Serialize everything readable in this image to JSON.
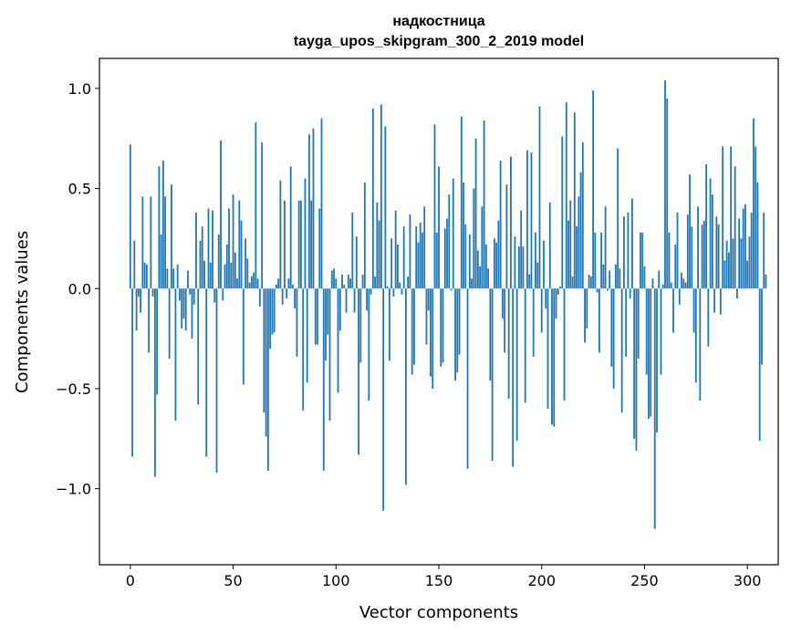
{
  "chart_data": {
    "type": "bar",
    "title": "надкостница",
    "subtitle": "tayga_upos_skipgram_300_2_2019 model",
    "xlabel": "Vector components",
    "ylabel": "Components values",
    "xlim": [
      -15,
      315
    ],
    "ylim": [
      -1.38,
      1.15
    ],
    "xticks": [
      0,
      50,
      100,
      150,
      200,
      250,
      300
    ],
    "yticks": [
      -1.0,
      -0.5,
      0.0,
      0.5,
      1.0
    ],
    "ytick_labels": [
      "−1.0",
      "−0.5",
      "0.0",
      "0.5",
      "1.0"
    ],
    "bar_color": "#1f77b4",
    "values": [
      0.72,
      -0.84,
      0.24,
      -0.21,
      -0.04,
      -0.12,
      0.46,
      0.13,
      0.12,
      -0.32,
      0.46,
      -0.04,
      -0.94,
      -0.53,
      0.61,
      0.27,
      0.64,
      0.46,
      0.1,
      -0.35,
      0.52,
      0.1,
      -0.66,
      0.12,
      -0.06,
      -0.2,
      -0.15,
      -0.21,
      0.09,
      -0.03,
      -0.25,
      -0.08,
      0.38,
      -0.58,
      0.24,
      0.31,
      0.14,
      -0.84,
      0.4,
      0.13,
      0.39,
      -0.07,
      -0.92,
      0.27,
      0.74,
      -0.06,
      0.12,
      0.22,
      0.4,
      0.13,
      0.47,
      0.18,
      0.05,
      0.44,
      0.34,
      -0.48,
      0.25,
      0.15,
      0.03,
      0.06,
      0.08,
      0.83,
      0.05,
      -0.09,
      0.73,
      -0.62,
      -0.74,
      -0.91,
      -0.3,
      -0.23,
      -0.22,
      0.02,
      0.05,
      0.54,
      -0.08,
      0.44,
      -0.05,
      0.05,
      0.61,
      0.02,
      -0.1,
      -0.34,
      0.44,
      0.44,
      -0.61,
      0.55,
      -0.47,
      0.77,
      0.44,
      0.8,
      -0.28,
      -0.28,
      0.4,
      0.85,
      -0.91,
      -0.36,
      -0.23,
      -0.66,
      0.09,
      0.1,
      0.05,
      -0.52,
      -0.21,
      0.07,
      0.02,
      -0.12,
      0.07,
      0.05,
      0.38,
      -0.12,
      0.26,
      -0.83,
      -0.37,
      0.07,
      0.53,
      -0.11,
      -0.56,
      -0.03,
      0.9,
      0.06,
      0.43,
      0.34,
      0.92,
      -1.11,
      0.81,
      0.01,
      -0.36,
      0.25,
      -0.04,
      0.39,
      0.22,
      0.03,
      -0.03,
      0.31,
      -0.98,
      0.06,
      0.37,
      -0.43,
      -0.38,
      0.31,
      0.23,
      0.33,
      0.28,
      0.41,
      -0.28,
      -0.11,
      -0.44,
      -0.5,
      0.82,
      0.28,
      0.61,
      -0.39,
      -0.37,
      0.3,
      0.35,
      0.47,
      -0.01,
      0.55,
      -0.46,
      -0.42,
      -0.33,
      0.86,
      0.53,
      0.32,
      -0.9,
      0.27,
      0.05,
      0.5,
      0.75,
      0.19,
      0.11,
      0.41,
      0.84,
      0.22,
      0.1,
      -0.46,
      -0.86,
      0.25,
      0.23,
      0.34,
      0.64,
      -0.15,
      -0.32,
      0.52,
      -0.55,
      0.66,
      -0.89,
      0.26,
      -0.76,
      0.21,
      0.39,
      0.21,
      -0.57,
      0.69,
      0.07,
      0.68,
      -0.34,
      0.28,
      0.13,
      0.91,
      -0.22,
      0.24,
      -0.1,
      -0.6,
      0.43,
      -0.68,
      -0.69,
      -0.15,
      -0.03,
      0.01,
      0.76,
      -0.56,
      0.93,
      0.34,
      0.44,
      0.06,
      0.88,
      0.31,
      0.46,
      0.58,
      0.73,
      -0.27,
      -0.2,
      0.07,
      0.06,
      0.99,
      0.28,
      -0.02,
      -0.32,
      0.28,
      0.12,
      0.41,
      -0.01,
      0.09,
      -0.39,
      -0.5,
      0.12,
      0.7,
      0.1,
      -0.62,
      0.36,
      -0.34,
      0.38,
      -0.05,
      0.45,
      -0.75,
      -0.81,
      -0.35,
      0.28,
      0.28,
      0.11,
      -0.43,
      -0.65,
      -0.64,
      0.05,
      -1.2,
      -0.72,
      0.09,
      -0.43,
      0.02,
      1.04,
      0.95,
      0.28,
      0.03,
      -0.22,
      0.22,
      0.38,
      -0.08,
      0.08,
      0.05,
      0.03,
      0.37,
      0.57,
      0.31,
      -0.22,
      -0.47,
      0.41,
      -0.56,
      0.32,
      0.34,
      0.62,
      -0.29,
      0.55,
      0.47,
      -0.12,
      0.36,
      0.32,
      -0.13,
      0.71,
      0.14,
      0.24,
      0.18,
      0.71,
      0.25,
      0.61,
      -0.05,
      0.35,
      0.25,
      0.4,
      0.42,
      0.14,
      0.26,
      0.38,
      0.85,
      0.71,
      0.53,
      -0.76,
      -0.38,
      0.38,
      0.07
    ]
  }
}
